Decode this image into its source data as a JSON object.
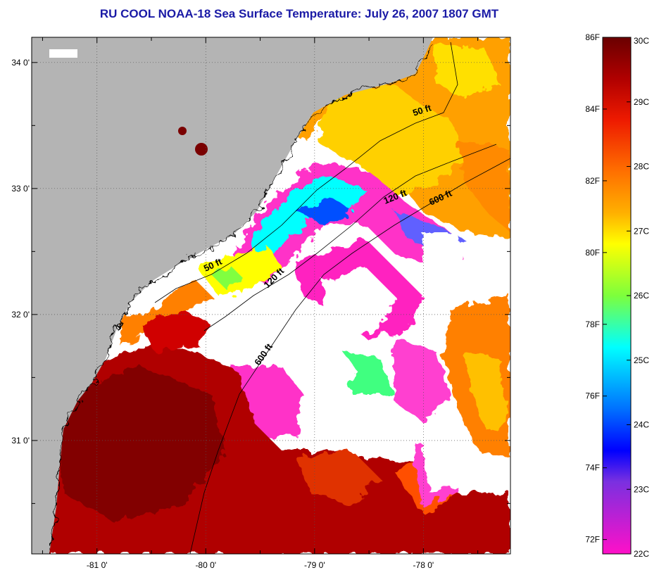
{
  "title": "RU COOL  NOAA-18  Sea Surface Temperature:  July 26, 2007 1807 GMT",
  "map": {
    "lat_labels": [
      "34 0'",
      "33 0'",
      "32 0'",
      "31 0'"
    ],
    "lon_labels": [
      "-81 0'",
      "-80 0'",
      "-79 0'",
      "-78 0'"
    ],
    "lat_values": [
      34,
      33,
      32,
      31
    ],
    "lon_values": [
      -81,
      -80,
      -79,
      -78
    ],
    "lat_range": [
      30.1,
      34.2
    ],
    "lon_range": [
      -81.6,
      -77.2
    ],
    "contour_labels": [
      {
        "text": "50 ft"
      },
      {
        "text": "50 ft"
      },
      {
        "text": "120 ft"
      },
      {
        "text": "120 ft"
      },
      {
        "text": "600 ft"
      },
      {
        "text": "600 ft"
      }
    ],
    "colors": {
      "land": "#b4b4b4",
      "no_data": "#ffffff"
    }
  },
  "colorbar": {
    "celsius_labels": [
      "30C",
      "29C",
      "28C",
      "27C",
      "26C",
      "25C",
      "24C",
      "23C",
      "22C"
    ],
    "fahrenheit_labels": [
      "86F",
      "84F",
      "82F",
      "80F",
      "78F",
      "76F",
      "74F",
      "72F"
    ],
    "celsius_range": [
      22,
      30
    ],
    "fahrenheit_values": [
      86,
      84,
      82,
      80,
      78,
      76,
      74,
      72
    ],
    "stops": [
      "#7a0000",
      "#d00000",
      "#ff4000",
      "#ff9000",
      "#ffff00",
      "#80ff40",
      "#00ffff",
      "#0080ff",
      "#0000ff",
      "#8000ff",
      "#ff00c0"
    ]
  }
}
